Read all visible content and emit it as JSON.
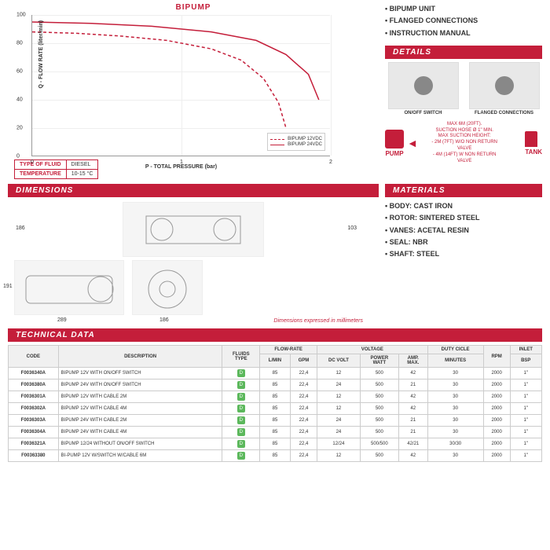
{
  "chart": {
    "title": "BIPUMP",
    "type": "line",
    "x_label": "P - TOTAL PRESSURE (bar)",
    "y_label": "Q - FLOW RATE (liter/min)",
    "xlim": [
      0,
      2
    ],
    "ylim": [
      0,
      100
    ],
    "x_ticks": [
      0,
      1,
      2
    ],
    "y_ticks": [
      0,
      20,
      40,
      60,
      80,
      100
    ],
    "grid_color": "#eeeeee",
    "series": [
      {
        "name": "BIPUMP 12VDC",
        "color": "#c41e3a",
        "dash": "4,3",
        "points": [
          [
            0,
            88
          ],
          [
            0.3,
            87
          ],
          [
            0.6,
            85
          ],
          [
            0.9,
            82
          ],
          [
            1.2,
            76
          ],
          [
            1.4,
            68
          ],
          [
            1.55,
            55
          ],
          [
            1.65,
            38
          ],
          [
            1.7,
            20
          ]
        ]
      },
      {
        "name": "BIPUMP 24VDC",
        "color": "#c41e3a",
        "dash": "none",
        "points": [
          [
            0,
            95
          ],
          [
            0.4,
            94
          ],
          [
            0.8,
            92
          ],
          [
            1.2,
            88
          ],
          [
            1.5,
            82
          ],
          [
            1.7,
            72
          ],
          [
            1.85,
            58
          ],
          [
            1.92,
            40
          ]
        ]
      }
    ]
  },
  "fluid_info": {
    "rows": [
      {
        "label": "TYPE OF FLUID",
        "value": "DIESEL"
      },
      {
        "label": "TEMPERATURE",
        "value": "10-15 °C"
      }
    ]
  },
  "package_contents": {
    "items": [
      "BIPUMP UNIT",
      "FLANGED CONNECTIONS",
      "INSTRUCTION MANUAL"
    ]
  },
  "details": {
    "header": "DETAILS",
    "items": [
      {
        "caption": "ON/OFF SWITCH"
      },
      {
        "caption": "FLANGED CONNECTIONS"
      }
    ]
  },
  "pump_tank": {
    "pump_label": "PUMP",
    "tank_label": "TANK",
    "specs": [
      "MAX 6M (20FT).",
      "SUCTION HOSE Ø 1\" MIN.",
      "MAX SUCTION HEIGHT:",
      "- 2M (7FT) W/O NON RETURN VALVE",
      "- 4M (14FT) W NON RETURN VALVE"
    ]
  },
  "dimensions": {
    "header": "DIMENSIONS",
    "note": "Dimensions expressed in millimeters",
    "top": {
      "h": "186",
      "h2": "103"
    },
    "bottom": {
      "h": "191",
      "w1": "289",
      "w2": "186"
    }
  },
  "materials": {
    "header": "MATERIALS",
    "items": [
      "BODY: CAST IRON",
      "ROTOR: SINTERED STEEL",
      "VANES: ACETAL RESIN",
      "SEAL: NBR",
      "SHAFT: STEEL"
    ]
  },
  "technical_data": {
    "header": "TECHNICAL DATA",
    "group_headers": [
      "",
      "",
      "",
      "FLOW-RATE",
      "VOLTAGE",
      "DUTY CICLE",
      "",
      ""
    ],
    "sub_headers": [
      "CODE",
      "DESCRIPTION",
      "FLUIDS TYPE",
      "L/MIN",
      "GPM",
      "DC VOLT",
      "POWER WATT",
      "AMP. MAX.",
      "MINUTES",
      "RPM",
      "INLET BSP"
    ],
    "rows": [
      [
        "F0036340A",
        "BIPUMP 12V WITH ON/OFF SWITCH",
        "D",
        "85",
        "22,4",
        "12",
        "500",
        "42",
        "30",
        "2000",
        "1\""
      ],
      [
        "F0036380A",
        "BIPUMP 24V WITH ON/OFF SWITCH",
        "D",
        "85",
        "22,4",
        "24",
        "500",
        "21",
        "30",
        "2000",
        "1\""
      ],
      [
        "F0036301A",
        "BIPUMP 12V WITH CABLE 2M",
        "D",
        "85",
        "22,4",
        "12",
        "500",
        "42",
        "30",
        "2000",
        "1\""
      ],
      [
        "F0036302A",
        "BIPUMP 12V WITH CABLE 4M",
        "D",
        "85",
        "22,4",
        "12",
        "500",
        "42",
        "30",
        "2000",
        "1\""
      ],
      [
        "F0036303A",
        "BIPUMP 24V WITH CABLE 2M",
        "D",
        "85",
        "22,4",
        "24",
        "500",
        "21",
        "30",
        "2000",
        "1\""
      ],
      [
        "F0036304A",
        "BIPUMP 24V WITH CABLE 4M",
        "D",
        "85",
        "22,4",
        "24",
        "500",
        "21",
        "30",
        "2000",
        "1\""
      ],
      [
        "F0036321A",
        "BIPUMP 12/24 WITHOUT ON/OFF SWITCH",
        "D",
        "85",
        "22,4",
        "12/24",
        "500/500",
        "42/21",
        "30/30",
        "2000",
        "1\""
      ],
      [
        "F00363380",
        "BI-PUMP 12V W/SWITCH W/CABLE 6M",
        "D",
        "85",
        "22,4",
        "12",
        "500",
        "42",
        "30",
        "2000",
        "1\""
      ]
    ]
  }
}
